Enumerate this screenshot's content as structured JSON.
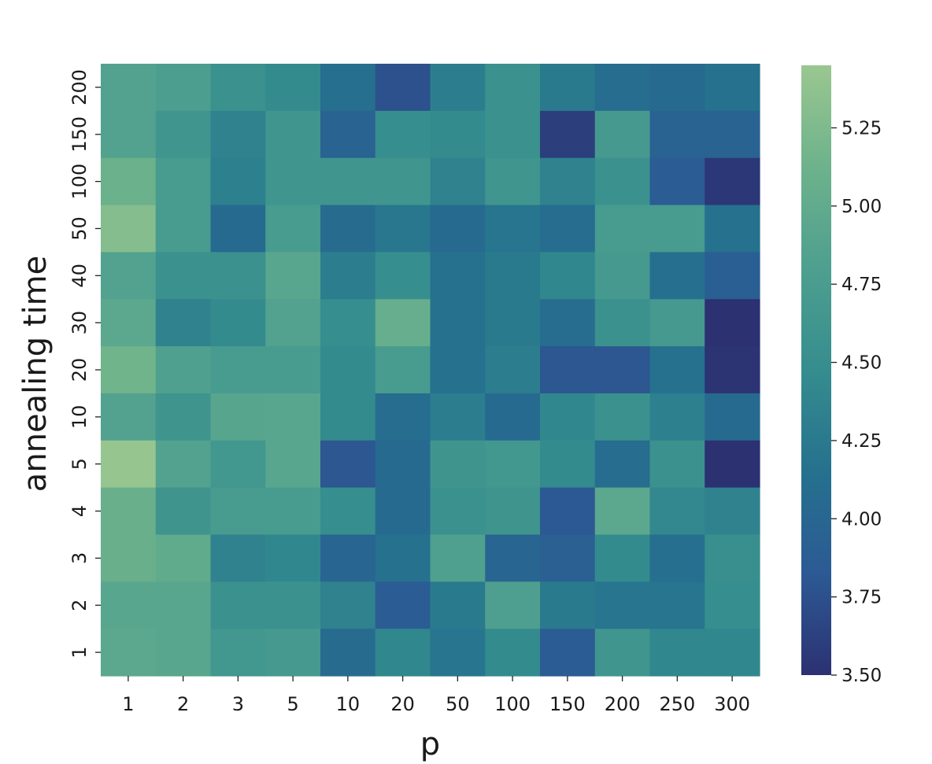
{
  "chart_data": {
    "type": "heatmap",
    "title": "",
    "xlabel": "p",
    "ylabel": "annealing time",
    "x_categories": [
      "1",
      "2",
      "3",
      "5",
      "10",
      "20",
      "50",
      "100",
      "150",
      "200",
      "250",
      "300"
    ],
    "y_categories": [
      "200",
      "150",
      "100",
      "50",
      "40",
      "30",
      "20",
      "10",
      "5",
      "4",
      "3",
      "2",
      "1"
    ],
    "values": [
      [
        4.85,
        4.78,
        4.55,
        4.45,
        4.12,
        3.75,
        4.3,
        4.55,
        4.25,
        4.1,
        4.05,
        4.15
      ],
      [
        4.85,
        4.62,
        4.35,
        4.62,
        3.95,
        4.5,
        4.45,
        4.55,
        3.6,
        4.7,
        3.95,
        3.95
      ],
      [
        5.1,
        4.72,
        4.32,
        4.62,
        4.62,
        4.62,
        4.35,
        4.62,
        4.35,
        4.55,
        3.85,
        3.55
      ],
      [
        5.3,
        4.72,
        4.05,
        4.72,
        4.08,
        4.22,
        4.05,
        4.2,
        4.1,
        4.72,
        4.72,
        4.15
      ],
      [
        4.85,
        4.55,
        4.55,
        4.92,
        4.3,
        4.5,
        4.15,
        4.25,
        4.4,
        4.7,
        4.12,
        3.9
      ],
      [
        4.95,
        4.35,
        4.45,
        4.85,
        4.5,
        5.05,
        4.15,
        4.25,
        4.1,
        4.55,
        4.7,
        3.5
      ],
      [
        5.15,
        4.82,
        4.72,
        4.72,
        4.45,
        4.72,
        4.15,
        4.3,
        3.8,
        3.8,
        4.15,
        3.52
      ],
      [
        4.85,
        4.6,
        4.9,
        4.92,
        4.45,
        4.1,
        4.3,
        4.05,
        4.4,
        4.55,
        4.32,
        4.05
      ],
      [
        5.42,
        4.85,
        4.65,
        4.92,
        3.8,
        4.05,
        4.6,
        4.65,
        4.45,
        4.1,
        4.55,
        3.5
      ],
      [
        5.08,
        4.6,
        4.72,
        4.72,
        4.5,
        4.05,
        4.55,
        4.6,
        3.82,
        4.95,
        4.42,
        4.35
      ],
      [
        5.08,
        5.0,
        4.35,
        4.4,
        4.0,
        4.15,
        4.82,
        4.0,
        3.92,
        4.45,
        4.12,
        4.52
      ],
      [
        4.92,
        4.92,
        4.55,
        4.55,
        4.35,
        3.85,
        4.25,
        4.8,
        4.25,
        4.2,
        4.2,
        4.5
      ],
      [
        4.95,
        4.92,
        4.65,
        4.7,
        4.08,
        4.4,
        4.2,
        4.45,
        3.85,
        4.62,
        4.4,
        4.4
      ]
    ],
    "colorbar": {
      "min": 3.5,
      "max": 5.45,
      "ticks": [
        "3.50",
        "3.75",
        "4.00",
        "4.25",
        "4.50",
        "4.75",
        "5.00",
        "5.25"
      ],
      "colormap": "crest",
      "colors": [
        "#2c3172",
        "#2c5a94",
        "#25718e",
        "#358d8e",
        "#4e9f8f",
        "#6db28c",
        "#9ac790"
      ]
    },
    "grid": false,
    "legend": "colorbar-right"
  }
}
